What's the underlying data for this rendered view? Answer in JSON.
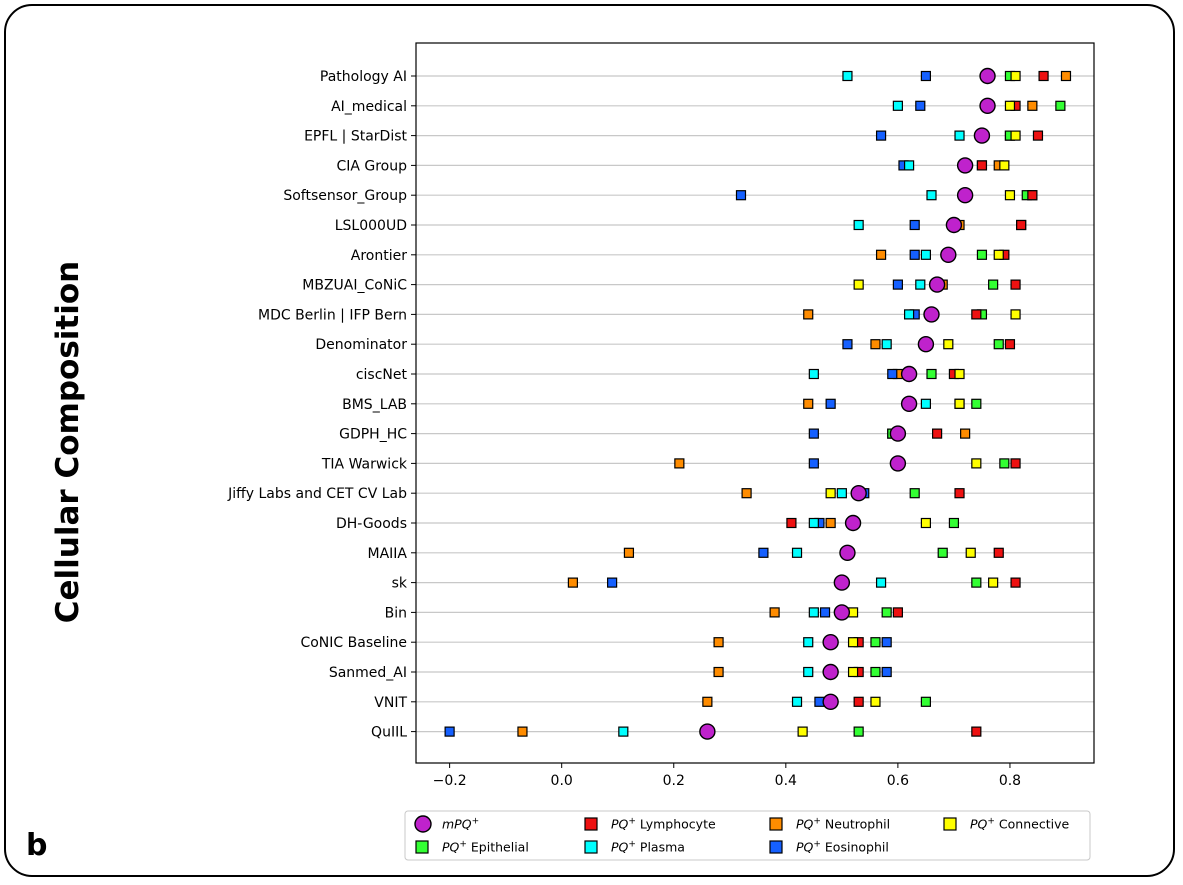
{
  "figure": {
    "side_title": "Cellular Composition",
    "panel_letter": "b"
  },
  "chart_data": {
    "type": "scatter",
    "orientation": "horizontal-dot-plot",
    "xlim": [
      -0.26,
      0.95
    ],
    "xticks": [
      -0.2,
      0.0,
      0.2,
      0.4,
      0.6,
      0.8
    ],
    "xtick_labels": [
      "−0.2",
      "0.0",
      "0.2",
      "0.4",
      "0.6",
      "0.8"
    ],
    "grid": "horizontal lines per category",
    "legend_position": "bottom",
    "categories": [
      "Pathology AI",
      "AI_medical",
      "EPFL | StarDist",
      "CIA Group",
      "Softsensor_Group",
      "LSL000UD",
      "Arontier",
      "MBZUAI_CoNiC",
      "MDC Berlin | IFP Bern",
      "Denominator",
      "ciscNet",
      "BMS_LAB",
      "GDPH_HC",
      "TIA Warwick",
      "Jiffy Labs and CET CV Lab",
      "DH-Goods",
      "MAIIA",
      "sk",
      "Bin",
      "CoNIC Baseline",
      "Sanmed_AI",
      "VNIT",
      "QuIIL"
    ],
    "series": [
      {
        "key": "neutrophil",
        "legend": "PQ⁺ Neutrophil",
        "marker": "square",
        "color": "#ff8c00",
        "values": [
          0.9,
          0.84,
          0.8,
          0.78,
          0.84,
          0.71,
          0.57,
          0.68,
          0.44,
          0.56,
          0.6,
          0.44,
          0.72,
          0.21,
          0.33,
          0.48,
          0.12,
          0.02,
          0.38,
          0.28,
          0.28,
          0.26,
          -0.07
        ]
      },
      {
        "key": "eosinophil",
        "legend": "PQ⁺ Eosinophil",
        "marker": "square",
        "color": "#1560ff",
        "values": [
          0.65,
          0.64,
          0.57,
          0.61,
          0.32,
          0.63,
          0.63,
          0.6,
          0.63,
          0.51,
          0.59,
          0.48,
          0.45,
          0.45,
          0.54,
          0.46,
          0.36,
          0.09,
          0.47,
          0.58,
          0.58,
          0.46,
          -0.2
        ]
      },
      {
        "key": "plasma",
        "legend": "PQ⁺ Plasma",
        "marker": "square",
        "color": "#00ffff",
        "values": [
          0.51,
          0.6,
          0.71,
          0.62,
          0.66,
          0.53,
          0.65,
          0.64,
          0.62,
          0.58,
          0.45,
          0.65,
          0.59,
          0.6,
          0.5,
          0.45,
          0.42,
          0.57,
          0.45,
          0.44,
          0.44,
          0.42,
          0.11
        ]
      },
      {
        "key": "epithelial",
        "legend": "PQ⁺ Epithelial",
        "marker": "square",
        "color": "#33ff33",
        "values": [
          0.8,
          0.89,
          0.8,
          0.75,
          0.83,
          0.82,
          0.75,
          0.77,
          0.75,
          0.78,
          0.66,
          0.74,
          0.59,
          0.79,
          0.63,
          0.7,
          0.68,
          0.74,
          0.58,
          0.56,
          0.56,
          0.65,
          0.53
        ]
      },
      {
        "key": "lymphocyte",
        "legend": "PQ⁺ Lymphocyte",
        "marker": "square",
        "color": "#ee1111",
        "values": [
          0.86,
          0.81,
          0.85,
          0.75,
          0.84,
          0.82,
          0.79,
          0.81,
          0.74,
          0.8,
          0.7,
          0.71,
          0.67,
          0.81,
          0.71,
          0.41,
          0.78,
          0.81,
          0.6,
          0.53,
          0.53,
          0.53,
          0.74
        ]
      },
      {
        "key": "connective",
        "legend": "PQ⁺ Connective",
        "marker": "square",
        "color": "#ffff00",
        "values": [
          0.81,
          0.8,
          0.81,
          0.79,
          0.8,
          0.7,
          0.78,
          0.53,
          0.81,
          0.69,
          0.71,
          0.71,
          0.6,
          0.74,
          0.48,
          0.65,
          0.73,
          0.77,
          0.52,
          0.52,
          0.52,
          0.56,
          0.43
        ]
      },
      {
        "key": "mpq",
        "legend": "mPQ⁺",
        "marker": "circle",
        "color": "#bf22cc",
        "values": [
          0.76,
          0.76,
          0.75,
          0.72,
          0.72,
          0.7,
          0.69,
          0.67,
          0.66,
          0.65,
          0.62,
          0.62,
          0.6,
          0.6,
          0.53,
          0.52,
          0.51,
          0.5,
          0.5,
          0.48,
          0.48,
          0.48,
          0.26
        ]
      }
    ],
    "legend_order": [
      "mpq",
      "lymphocyte",
      "neutrophil",
      "connective",
      "epithelial",
      "plasma",
      "eosinophil"
    ],
    "legend_entries": [
      {
        "key": "mpq",
        "prefix": "mPQ",
        "suffix": ""
      },
      {
        "key": "lymphocyte",
        "prefix": "PQ",
        "suffix": " Lymphocyte"
      },
      {
        "key": "neutrophil",
        "prefix": "PQ",
        "suffix": " Neutrophil"
      },
      {
        "key": "connective",
        "prefix": "PQ",
        "suffix": " Connective"
      },
      {
        "key": "epithelial",
        "prefix": "PQ",
        "suffix": " Epithelial"
      },
      {
        "key": "plasma",
        "prefix": "PQ",
        "suffix": " Plasma"
      },
      {
        "key": "eosinophil",
        "prefix": "PQ",
        "suffix": " Eosinophil"
      }
    ]
  }
}
